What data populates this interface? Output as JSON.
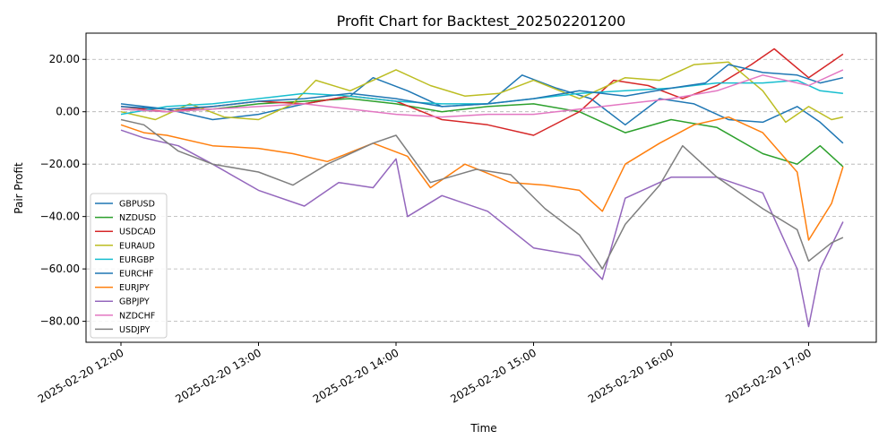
{
  "chart_data": {
    "type": "line",
    "title": "Profit Chart for Backtest_202502201200",
    "xlabel": "Time",
    "ylabel": "Pair Profit",
    "x_start": "2025-02-20 12:00",
    "x_end": "2025-02-20 17:15",
    "x_ticks": [
      "2025-02-20 12:00",
      "2025-02-20 13:00",
      "2025-02-20 14:00",
      "2025-02-20 15:00",
      "2025-02-20 16:00",
      "2025-02-20 17:00"
    ],
    "ylim": [
      -88,
      30
    ],
    "y_ticks": [
      20.0,
      0.0,
      -20.0,
      -40.0,
      -60.0,
      -80.0
    ],
    "y_tick_labels": [
      "20.00",
      "0.00",
      "−20.00",
      "−40.00",
      "−60.00",
      "−80.00"
    ],
    "grid": "horizontal-dashed",
    "legend_position": "lower-left",
    "series": [
      {
        "name": "GBPUSD",
        "color": "#1f77b4",
        "x": [
          "2025-02-20 12:00",
          "2025-02-20 12:20",
          "2025-02-20 12:40",
          "2025-02-20 13:00",
          "2025-02-20 13:20",
          "2025-02-20 13:40",
          "2025-02-20 13:50",
          "2025-02-20 14:05",
          "2025-02-20 14:20",
          "2025-02-20 14:40",
          "2025-02-20 14:55",
          "2025-02-20 15:10",
          "2025-02-20 15:25",
          "2025-02-20 15:40",
          "2025-02-20 15:55",
          "2025-02-20 16:10",
          "2025-02-20 16:25",
          "2025-02-20 16:40",
          "2025-02-20 16:55",
          "2025-02-20 17:05",
          "2025-02-20 17:15"
        ],
        "values": [
          3,
          1,
          -3,
          -1,
          3,
          6,
          13,
          8,
          2,
          3,
          14,
          9,
          5,
          -5,
          5,
          3,
          -3,
          -4,
          2,
          -4,
          -12
        ]
      },
      {
        "name": "NZDUSD",
        "color": "#2ca02c",
        "x": [
          "2025-02-20 12:00",
          "2025-02-20 12:20",
          "2025-02-20 12:40",
          "2025-02-20 13:00",
          "2025-02-20 13:20",
          "2025-02-20 13:40",
          "2025-02-20 14:00",
          "2025-02-20 14:20",
          "2025-02-20 14:40",
          "2025-02-20 15:00",
          "2025-02-20 15:20",
          "2025-02-20 15:40",
          "2025-02-20 16:00",
          "2025-02-20 16:20",
          "2025-02-20 16:40",
          "2025-02-20 16:55",
          "2025-02-20 17:05",
          "2025-02-20 17:15"
        ],
        "values": [
          1,
          0,
          1,
          3,
          4,
          5,
          3,
          0,
          2,
          3,
          0,
          -8,
          -3,
          -6,
          -16,
          -20,
          -13,
          -21
        ]
      },
      {
        "name": "USDCAD",
        "color": "#d62728",
        "x": [
          "2025-02-20 12:00",
          "2025-02-20 12:20",
          "2025-02-20 12:40",
          "2025-02-20 13:00",
          "2025-02-20 13:20",
          "2025-02-20 13:40",
          "2025-02-20 14:00",
          "2025-02-20 14:20",
          "2025-02-20 14:40",
          "2025-02-20 15:00",
          "2025-02-20 15:20",
          "2025-02-20 15:35",
          "2025-02-20 15:50",
          "2025-02-20 16:05",
          "2025-02-20 16:20",
          "2025-02-20 16:35",
          "2025-02-20 16:45",
          "2025-02-20 17:00",
          "2025-02-20 17:10",
          "2025-02-20 17:15"
        ],
        "values": [
          2,
          0,
          2,
          4,
          3,
          6,
          4,
          -3,
          -5,
          -9,
          0,
          12,
          10,
          5,
          10,
          18,
          24,
          13,
          19,
          22
        ]
      },
      {
        "name": "EURAUD",
        "color": "#bcbd22",
        "x": [
          "2025-02-20 12:00",
          "2025-02-20 12:15",
          "2025-02-20 12:30",
          "2025-02-20 12:45",
          "2025-02-20 13:00",
          "2025-02-20 13:15",
          "2025-02-20 13:25",
          "2025-02-20 13:40",
          "2025-02-20 14:00",
          "2025-02-20 14:15",
          "2025-02-20 14:30",
          "2025-02-20 14:45",
          "2025-02-20 15:00",
          "2025-02-20 15:20",
          "2025-02-20 15:40",
          "2025-02-20 15:55",
          "2025-02-20 16:10",
          "2025-02-20 16:25",
          "2025-02-20 16:40",
          "2025-02-20 16:50",
          "2025-02-20 17:00",
          "2025-02-20 17:10",
          "2025-02-20 17:15"
        ],
        "values": [
          0,
          -3,
          3,
          -2,
          -3,
          3,
          12,
          8,
          16,
          10,
          6,
          7,
          12,
          5,
          13,
          12,
          18,
          19,
          8,
          -4,
          2,
          -3,
          -2
        ]
      },
      {
        "name": "EURGBP",
        "color": "#17becf",
        "x": [
          "2025-02-20 12:00",
          "2025-02-20 12:20",
          "2025-02-20 12:40",
          "2025-02-20 13:00",
          "2025-02-20 13:20",
          "2025-02-20 13:40",
          "2025-02-20 14:00",
          "2025-02-20 14:20",
          "2025-02-20 14:40",
          "2025-02-20 15:00",
          "2025-02-20 15:20",
          "2025-02-20 15:40",
          "2025-02-20 16:00",
          "2025-02-20 16:20",
          "2025-02-20 16:40",
          "2025-02-20 16:55",
          "2025-02-20 17:05",
          "2025-02-20 17:15"
        ],
        "values": [
          -1,
          2,
          3,
          5,
          7,
          6,
          4,
          3,
          3,
          5,
          7,
          8,
          9,
          11,
          11,
          12,
          8,
          7
        ]
      },
      {
        "name": "EURCHF",
        "color": "#1f77b4",
        "x": [
          "2025-02-20 12:00",
          "2025-02-20 12:20",
          "2025-02-20 12:40",
          "2025-02-20 13:00",
          "2025-02-20 13:20",
          "2025-02-20 13:40",
          "2025-02-20 14:00",
          "2025-02-20 14:20",
          "2025-02-20 14:40",
          "2025-02-20 15:00",
          "2025-02-20 15:20",
          "2025-02-20 15:40",
          "2025-02-20 16:00",
          "2025-02-20 16:15",
          "2025-02-20 16:25",
          "2025-02-20 16:40",
          "2025-02-20 16:55",
          "2025-02-20 17:05",
          "2025-02-20 17:15"
        ],
        "values": [
          2,
          1,
          2,
          4,
          5,
          7,
          5,
          2,
          3,
          5,
          8,
          6,
          9,
          11,
          18,
          15,
          14,
          11,
          13
        ]
      },
      {
        "name": "EURJPY",
        "color": "#ff7f0e",
        "x": [
          "2025-02-20 12:00",
          "2025-02-20 12:10",
          "2025-02-20 12:20",
          "2025-02-20 12:40",
          "2025-02-20 13:00",
          "2025-02-20 13:15",
          "2025-02-20 13:30",
          "2025-02-20 13:50",
          "2025-02-20 14:05",
          "2025-02-20 14:15",
          "2025-02-20 14:30",
          "2025-02-20 14:50",
          "2025-02-20 15:05",
          "2025-02-20 15:20",
          "2025-02-20 15:30",
          "2025-02-20 15:40",
          "2025-02-20 15:55",
          "2025-02-20 16:10",
          "2025-02-20 16:25",
          "2025-02-20 16:40",
          "2025-02-20 16:55",
          "2025-02-20 17:00",
          "2025-02-20 17:10",
          "2025-02-20 17:15"
        ],
        "values": [
          -5,
          -8,
          -9,
          -13,
          -14,
          -16,
          -19,
          -12,
          -17,
          -29,
          -20,
          -27,
          -28,
          -30,
          -38,
          -20,
          -12,
          -5,
          -2,
          -8,
          -23,
          -49,
          -35,
          -21
        ]
      },
      {
        "name": "GBPJPY",
        "color": "#9467bd",
        "x": [
          "2025-02-20 12:00",
          "2025-02-20 12:10",
          "2025-02-20 12:25",
          "2025-02-20 12:40",
          "2025-02-20 13:00",
          "2025-02-20 13:20",
          "2025-02-20 13:35",
          "2025-02-20 13:50",
          "2025-02-20 14:00",
          "2025-02-20 14:05",
          "2025-02-20 14:20",
          "2025-02-20 14:40",
          "2025-02-20 15:00",
          "2025-02-20 15:20",
          "2025-02-20 15:30",
          "2025-02-20 15:40",
          "2025-02-20 16:00",
          "2025-02-20 16:20",
          "2025-02-20 16:40",
          "2025-02-20 16:55",
          "2025-02-20 17:00",
          "2025-02-20 17:05",
          "2025-02-20 17:15"
        ],
        "values": [
          -7,
          -10,
          -13,
          -20,
          -30,
          -36,
          -27,
          -29,
          -18,
          -40,
          -32,
          -38,
          -52,
          -55,
          -64,
          -33,
          -25,
          -25,
          -31,
          -60,
          -82,
          -60,
          -42
        ]
      },
      {
        "name": "NZDCHF",
        "color": "#e377c2",
        "x": [
          "2025-02-20 12:00",
          "2025-02-20 12:20",
          "2025-02-20 12:40",
          "2025-02-20 13:00",
          "2025-02-20 13:20",
          "2025-02-20 13:40",
          "2025-02-20 14:00",
          "2025-02-20 14:20",
          "2025-02-20 14:40",
          "2025-02-20 15:00",
          "2025-02-20 15:20",
          "2025-02-20 15:40",
          "2025-02-20 16:00",
          "2025-02-20 16:20",
          "2025-02-20 16:40",
          "2025-02-20 17:00",
          "2025-02-20 17:15"
        ],
        "values": [
          1,
          0,
          1,
          2,
          3,
          1,
          -1,
          -2,
          -1,
          -1,
          1,
          3,
          5,
          8,
          14,
          10,
          16
        ]
      },
      {
        "name": "USDJPY",
        "color": "#7f7f7f",
        "x": [
          "2025-02-20 12:00",
          "2025-02-20 12:10",
          "2025-02-20 12:25",
          "2025-02-20 12:40",
          "2025-02-20 13:00",
          "2025-02-20 13:15",
          "2025-02-20 13:30",
          "2025-02-20 13:50",
          "2025-02-20 14:00",
          "2025-02-20 14:15",
          "2025-02-20 14:35",
          "2025-02-20 14:50",
          "2025-02-20 15:05",
          "2025-02-20 15:20",
          "2025-02-20 15:30",
          "2025-02-20 15:40",
          "2025-02-20 15:55",
          "2025-02-20 16:05",
          "2025-02-20 16:20",
          "2025-02-20 16:40",
          "2025-02-20 16:55",
          "2025-02-20 17:00",
          "2025-02-20 17:10",
          "2025-02-20 17:15"
        ],
        "values": [
          -3,
          -5,
          -15,
          -20,
          -23,
          -28,
          -20,
          -12,
          -9,
          -27,
          -22,
          -24,
          -37,
          -47,
          -60,
          -43,
          -28,
          -13,
          -25,
          -37,
          -45,
          -57,
          -50,
          -48
        ]
      }
    ]
  }
}
